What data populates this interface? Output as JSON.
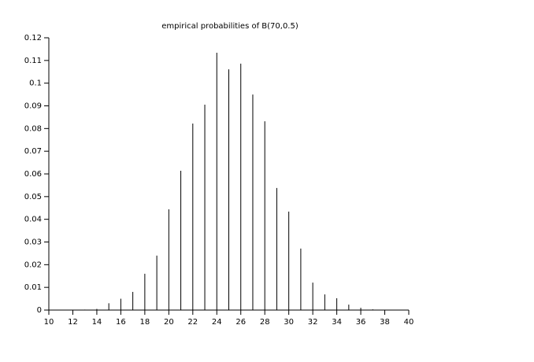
{
  "chart_data": {
    "type": "stem",
    "title": "empirical probabilities of B(70,0.5)",
    "x": [
      13,
      14,
      15,
      16,
      17,
      18,
      19,
      20,
      21,
      22,
      23,
      24,
      25,
      26,
      27,
      28,
      29,
      30,
      31,
      32,
      33,
      34,
      35,
      36,
      37
    ],
    "values": [
      0.0002,
      0.0005,
      0.003,
      0.005,
      0.008,
      0.016,
      0.024,
      0.0444,
      0.0614,
      0.0822,
      0.0905,
      0.1134,
      0.1061,
      0.1086,
      0.095,
      0.0832,
      0.0538,
      0.0434,
      0.0271,
      0.0121,
      0.0069,
      0.0052,
      0.0024,
      0.001,
      0.0003
    ],
    "color": "#000000",
    "xlim": [
      10,
      40
    ],
    "xticks": [
      10,
      12,
      14,
      16,
      18,
      20,
      22,
      24,
      26,
      28,
      30,
      32,
      34,
      36,
      38,
      40
    ],
    "ylim": [
      0,
      0.12
    ],
    "yticks": [
      0,
      0.01,
      0.02,
      0.03,
      0.04,
      0.05,
      0.06,
      0.07,
      0.08,
      0.09,
      0.1,
      0.11,
      0.12
    ]
  }
}
